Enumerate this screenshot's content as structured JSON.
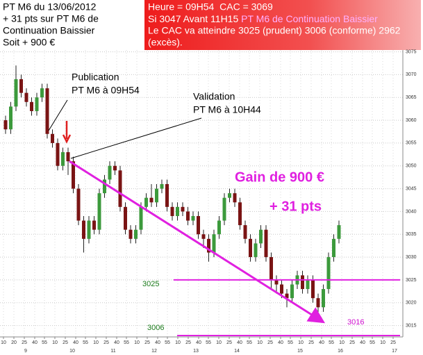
{
  "chart_data": {
    "type": "candlestick",
    "header_left": [
      "PT M6 du 13/06/2012",
      "+ 31 pts sur PT M6 de",
      "Continuation Baissier",
      "Soit + 900 €"
    ],
    "header_right": {
      "line1": "Heure = 09H54  CAC = 3069",
      "line2a": "Si 3047 Avant 11H15 ",
      "line2b": "PT M6 de Continuation Baissier",
      "line3": "Le CAC va atteindre 3025 (prudent) 3006 (conforme) 2962",
      "line4": "(excès)."
    },
    "publication": [
      "Publication",
      "PT M6 à 09H54"
    ],
    "validation": [
      "Validation",
      "PT M6 à 10H44"
    ],
    "gain_text": "Gain de 900 €",
    "points_text": "+ 31 pts",
    "target_conforme": "3006",
    "level": 3025,
    "trend_line": {
      "x": [
        93,
        456
      ],
      "y": [
        3051,
        3016
      ]
    },
    "up_color": "#3c9a3c",
    "down_color": "#7a1414",
    "x": [
      1,
      8.5,
      16,
      23.5,
      31,
      38.5,
      46,
      53.5,
      61,
      68.5,
      76,
      83.5,
      91,
      98.5,
      106,
      113.5,
      121,
      128.5,
      136,
      143.5,
      151,
      158.5,
      166,
      173.5,
      181,
      188.5,
      196,
      203.5,
      211,
      218.5,
      226,
      233.5,
      241,
      248.5,
      256,
      263.5,
      271,
      278.5,
      286,
      293.5,
      301,
      308.5,
      316,
      323.5,
      331,
      338.5,
      346,
      353.5,
      361,
      368.5,
      376,
      383.5,
      391,
      398.5,
      406,
      413.5,
      421,
      428.5,
      436,
      443.5,
      451,
      458.5,
      466,
      473.5,
      481
    ],
    "open": [
      3060,
      3058,
      3063,
      3069,
      3066,
      3064,
      3062,
      3065,
      3067,
      3057,
      3055,
      3050,
      3053,
      3051,
      3045,
      3038,
      3034,
      3038,
      3036,
      3044,
      3047,
      3050,
      3049,
      3041,
      3036,
      3034,
      3036,
      3041,
      3043,
      3042,
      3045,
      3046,
      3041,
      3039,
      3041,
      3040,
      3038,
      3039,
      3035,
      3034,
      3031,
      3035,
      3038,
      3043,
      3044,
      3042,
      3037,
      3034,
      3030,
      3033,
      3036,
      3030,
      3025,
      3024,
      3022,
      3021,
      3024,
      3026,
      3023,
      3025,
      3021,
      3019,
      3023,
      3030,
      3034
    ],
    "high": [
      3061,
      3064,
      3072,
      3070,
      3067,
      3065,
      3066,
      3068,
      3068,
      3058,
      3056,
      3054,
      3054,
      3052,
      3046,
      3039,
      3039,
      3039,
      3045,
      3048,
      3051,
      3051,
      3050,
      3042,
      3037,
      3037,
      3042,
      3044,
      3046,
      3046,
      3047,
      3047,
      3042,
      3042,
      3042,
      3041,
      3040,
      3040,
      3036,
      3035,
      3036,
      3039,
      3044,
      3045,
      3045,
      3043,
      3038,
      3035,
      3034,
      3037,
      3037,
      3031,
      3026,
      3025,
      3023,
      3025,
      3027,
      3027,
      3026,
      3026,
      3022,
      3024,
      3031,
      3035,
      3038
    ],
    "low": [
      3057,
      3057,
      3062,
      3065,
      3063,
      3061,
      3061,
      3064,
      3056,
      3054,
      3049,
      3049,
      3048,
      3044,
      3037,
      3031,
      3033,
      3035,
      3035,
      3043,
      3046,
      3048,
      3040,
      3035,
      3033,
      3033,
      3035,
      3040,
      3041,
      3041,
      3044,
      3040,
      3038,
      3038,
      3039,
      3037,
      3037,
      3034,
      3032,
      3029,
      3030,
      3034,
      3037,
      3042,
      3041,
      3036,
      3033,
      3029,
      3029,
      3032,
      3029,
      3023,
      3022,
      3021,
      3019,
      3020,
      3023,
      3022,
      3022,
      3020,
      3017,
      3018,
      3022,
      3029,
      3033
    ],
    "close": [
      3058,
      3063,
      3069,
      3066,
      3064,
      3062,
      3065,
      3067,
      3057,
      3055,
      3050,
      3053,
      3051,
      3045,
      3038,
      3034,
      3038,
      3036,
      3044,
      3047,
      3050,
      3049,
      3041,
      3036,
      3034,
      3036,
      3041,
      3043,
      3042,
      3045,
      3046,
      3041,
      3039,
      3041,
      3040,
      3038,
      3039,
      3035,
      3034,
      3031,
      3035,
      3038,
      3043,
      3044,
      3042,
      3037,
      3034,
      3030,
      3033,
      3036,
      3030,
      3025,
      3024,
      3022,
      3021,
      3024,
      3026,
      3023,
      3025,
      3021,
      3019,
      3023,
      3030,
      3034,
      3037
    ],
    "xlim": [
      -7,
      573
    ],
    "ylim": [
      3012.5,
      3076
    ],
    "yticks": [
      3015,
      3020,
      3025,
      3030,
      3035,
      3040,
      3045,
      3050,
      3055,
      3060,
      3065,
      3070,
      3075
    ],
    "xticks": [
      {
        "value": -2,
        "label": "10"
      },
      {
        "value": 13,
        "label": "20"
      },
      {
        "value": 28,
        "label": "25"
      },
      {
        "value": 43,
        "label": "40"
      },
      {
        "value": 57,
        "label": "55"
      },
      {
        "value": 72,
        "label": "10"
      },
      {
        "value": 87,
        "label": "25"
      },
      {
        "value": 102,
        "label": "40"
      },
      {
        "value": 116,
        "label": "55"
      },
      {
        "value": 131,
        "label": "10"
      },
      {
        "value": 146,
        "label": "25"
      },
      {
        "value": 161,
        "label": "40"
      },
      {
        "value": 175,
        "label": "55"
      },
      {
        "value": 190,
        "label": "10"
      },
      {
        "value": 205,
        "label": "25"
      },
      {
        "value": 220,
        "label": "40"
      },
      {
        "value": 234,
        "label": "55"
      },
      {
        "value": 249,
        "label": "10"
      },
      {
        "value": 264,
        "label": "25"
      },
      {
        "value": 279,
        "label": "40"
      },
      {
        "value": 293,
        "label": "55"
      },
      {
        "value": 308,
        "label": "10"
      },
      {
        "value": 323,
        "label": "25"
      },
      {
        "value": 338,
        "label": "40"
      },
      {
        "value": 352,
        "label": "55"
      },
      {
        "value": 367,
        "label": "10"
      },
      {
        "value": 382,
        "label": "25"
      },
      {
        "value": 397,
        "label": "40"
      },
      {
        "value": 411,
        "label": "55"
      },
      {
        "value": 426,
        "label": "10"
      },
      {
        "value": 441,
        "label": "25"
      },
      {
        "value": 456,
        "label": "40"
      },
      {
        "value": 470,
        "label": "55"
      },
      {
        "value": 485,
        "label": "10"
      },
      {
        "value": 500,
        "label": "25"
      },
      {
        "value": 515,
        "label": "40"
      },
      {
        "value": 529,
        "label": "55"
      },
      {
        "value": 544,
        "label": "10"
      },
      {
        "value": 559,
        "label": "25"
      }
    ],
    "hour_ticks": [
      {
        "value": 30,
        "label": "9"
      },
      {
        "value": 97,
        "label": "10"
      },
      {
        "value": 156,
        "label": "11"
      },
      {
        "value": 215,
        "label": "12"
      },
      {
        "value": 275,
        "label": "13"
      },
      {
        "value": 334,
        "label": "14"
      },
      {
        "value": 425,
        "label": "15"
      },
      {
        "value": 483,
        "label": "16"
      },
      {
        "value": 561,
        "label": "17"
      }
    ],
    "grid": true
  }
}
